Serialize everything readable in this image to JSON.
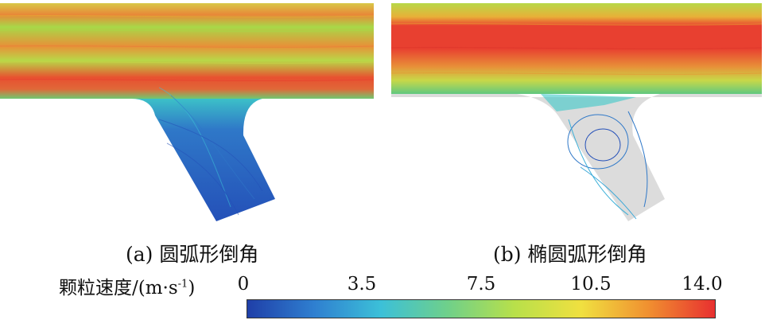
{
  "panels": [
    {
      "id": "a",
      "caption": "(a) 圆弧形倒角"
    },
    {
      "id": "b",
      "caption": "(b) 椭圆弧形倒角"
    }
  ],
  "colorbar": {
    "label_prefix": "颗粒速度/(m·s",
    "label_sup": "-1",
    "label_suffix": ")",
    "ticks": [
      "0",
      "3.5",
      "7.5",
      "10.5",
      "14.0"
    ],
    "min": 0,
    "max": 14,
    "colors": [
      "#1f3fa8",
      "#2f7fd0",
      "#3cc0d8",
      "#6fd08a",
      "#b8e04a",
      "#f0e040",
      "#f09030",
      "#e83030"
    ]
  },
  "colors": {
    "background": "#ffffff",
    "domain_fill": "#dcdcdc",
    "pipe_high": "#e84030",
    "pipe_mid": "#9ed848",
    "pipe_cool": "#3ccad0",
    "branch_slow": "#2a5cc0"
  }
}
